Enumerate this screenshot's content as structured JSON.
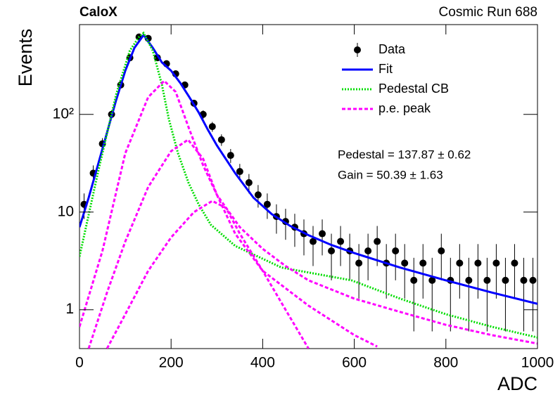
{
  "chart_data": {
    "type": "line",
    "title": "CaloX",
    "subtitle": "Cosmic Run 688",
    "x_label": "ADC",
    "y_label": "Events",
    "annotations": [
      "Pedestal = 137.87 ± 0.62",
      "Gain = 50.39 ± 1.63"
    ],
    "log_y": true,
    "legend": "upper-right",
    "xlim": [
      0,
      1000
    ],
    "xticks": [
      0,
      200,
      400,
      600,
      800,
      1000
    ],
    "ylim": [
      0.4,
      830
    ],
    "yticks": [
      1,
      10,
      {
        "value": 100,
        "label": "10²"
      }
    ],
    "series": [
      {
        "name": "Data",
        "style": "points",
        "color": "#000000",
        "x": [
          10,
          30,
          50,
          70,
          90,
          110,
          130,
          150,
          170,
          190,
          210,
          230,
          250,
          270,
          290,
          310,
          330,
          350,
          370,
          390,
          410,
          430,
          450,
          470,
          490,
          510,
          530,
          550,
          570,
          590,
          610,
          630,
          650,
          670,
          690,
          710,
          730,
          750,
          770,
          790,
          810,
          830,
          850,
          870,
          890,
          910,
          930,
          950,
          970,
          990
        ],
        "values": [
          12,
          25,
          50,
          100,
          200,
          380,
          620,
          600,
          380,
          330,
          260,
          200,
          130,
          100,
          75,
          55,
          38,
          26,
          20,
          15,
          12,
          9,
          8,
          7,
          6,
          5,
          6,
          4,
          5,
          4,
          3,
          4,
          5,
          3,
          4,
          3,
          2,
          3,
          2,
          4,
          2,
          3,
          2,
          3,
          2,
          3,
          2,
          3,
          2,
          2
        ],
        "errors": [
          3.5,
          5,
          7.1,
          10,
          14,
          19,
          25,
          24,
          19,
          18,
          16,
          14,
          11,
          10,
          8.7,
          7.4,
          6.2,
          5.1,
          4.5,
          3.9,
          3.5,
          3,
          2.8,
          2.6,
          2.4,
          2.2,
          2.4,
          2,
          2.2,
          2,
          1.7,
          2,
          2.2,
          1.7,
          2,
          1.7,
          1.4,
          1.7,
          1.4,
          2,
          1.4,
          1.7,
          1.4,
          1.7,
          1.4,
          1.7,
          1.4,
          1.7,
          1.4,
          1.4
        ]
      },
      {
        "name": "Fit",
        "style": "line",
        "line_style": "solid",
        "color": "#0000ff",
        "x": [
          0,
          20,
          40,
          60,
          80,
          100,
          120,
          140,
          160,
          180,
          200,
          220,
          240,
          260,
          280,
          300,
          340,
          380,
          420,
          460,
          500,
          550,
          600,
          700,
          800,
          900,
          1000
        ],
        "values": [
          7,
          14,
          30,
          65,
          140,
          280,
          480,
          650,
          480,
          340,
          280,
          210,
          150,
          105,
          70,
          48,
          25,
          14,
          9.5,
          7.2,
          5.8,
          4.6,
          3.8,
          2.7,
          2.0,
          1.5,
          1.15
        ]
      },
      {
        "name": "Pedestal CB",
        "style": "line",
        "line_style": "dotted",
        "color": "#00dd00",
        "x": [
          0,
          40,
          80,
          110,
          130,
          140,
          160,
          180,
          195,
          215,
          238,
          260,
          287,
          340,
          441,
          594,
          700,
          800,
          900,
          1000
        ],
        "values": [
          3.5,
          25,
          160,
          450,
          620,
          680,
          450,
          200,
          90,
          40,
          20,
          12,
          7.4,
          4.5,
          2.7,
          2,
          1.3,
          0.9,
          0.67,
          0.52
        ]
      },
      {
        "name": "p.e. peak",
        "style": "line",
        "line_style": "dashed",
        "color": "#ff00ff",
        "x": [
          0,
          50,
          100,
          150,
          185,
          210,
          240,
          270,
          300,
          350,
          400,
          450,
          500,
          600,
          700,
          800,
          900,
          1000
        ],
        "values": [
          0.67,
          4,
          40,
          150,
          220,
          170,
          70,
          30,
          15,
          7,
          4.2,
          2.8,
          2,
          1.3,
          0.95,
          0.7,
          0.55,
          0.45
        ]
      },
      {
        "name": null,
        "style": "line",
        "line_style": "dashed",
        "color": "#ff00ff",
        "x": [
          20,
          60,
          100,
          150,
          200,
          237,
          270,
          300,
          340,
          400,
          500,
          600,
          650
        ],
        "values": [
          0.4,
          1.5,
          5,
          18,
          42,
          55,
          35,
          15,
          6,
          2.5,
          1.1,
          0.55,
          0.42
        ]
      },
      {
        "name": null,
        "style": "line",
        "line_style": "dashed",
        "color": "#ff00ff",
        "x": [
          60,
          100,
          150,
          200,
          250,
          290,
          320,
          350,
          400,
          450,
          500
        ],
        "values": [
          0.4,
          0.9,
          2.5,
          5.5,
          10,
          13,
          11,
          6,
          2.5,
          1,
          0.4
        ]
      }
    ]
  }
}
